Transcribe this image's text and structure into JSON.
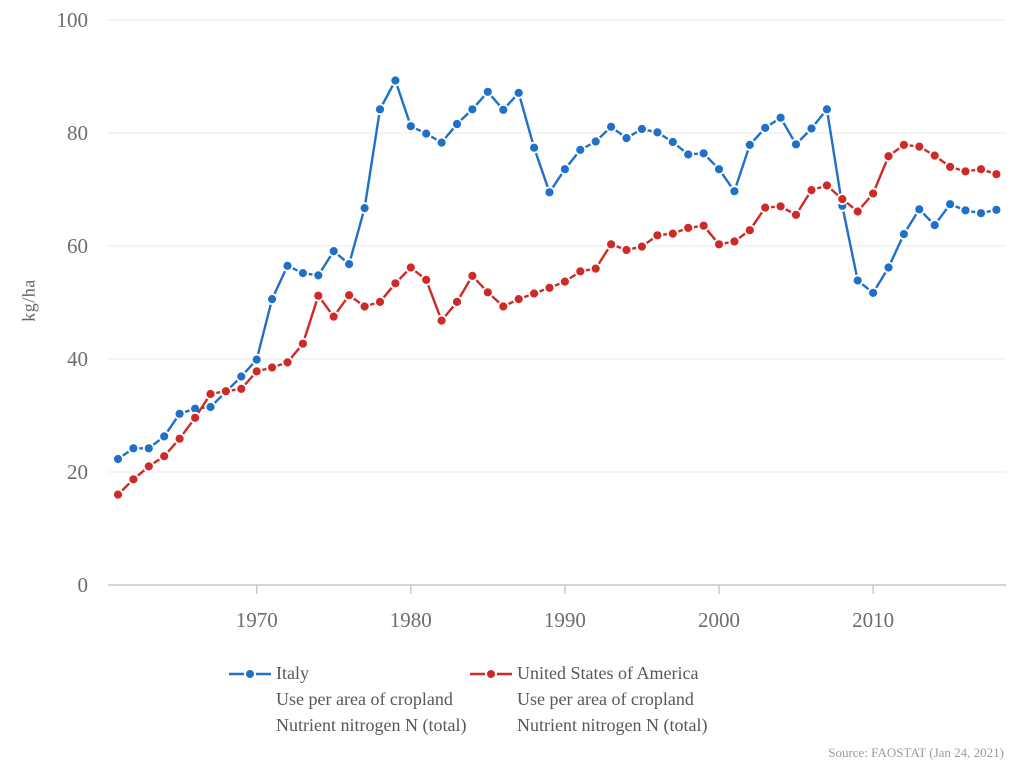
{
  "chart": {
    "y_axis": {
      "label": "kg/ha",
      "ticks": [
        0,
        20,
        40,
        60,
        80,
        100
      ],
      "max": 100
    },
    "x_axis": {
      "ticks": [
        1970,
        1980,
        1990,
        2000,
        2010
      ]
    },
    "source": "Source: FAOSTAT (Jan 24, 2021)"
  },
  "colors": {
    "italy": "#2070c8",
    "usa": "#cd2a28",
    "grid": "#e8e8e8",
    "axis": "#c9c9c9",
    "tick_text": "#6d6d6d"
  },
  "legend": {
    "items": [
      {
        "name": "Italy",
        "line1": "Use per area of cropland",
        "line2": "Nutrient nitrogen N (total)",
        "color": "#2070c8"
      },
      {
        "name": "United States of America",
        "line1": "Use per area of cropland",
        "line2": "Nutrient nitrogen N (total)",
        "color": "#cd2a28"
      }
    ]
  },
  "chart_data": {
    "type": "line",
    "title": "",
    "xlabel": "",
    "ylabel": "kg/ha",
    "ylim": [
      0,
      100
    ],
    "xlim": [
      1961,
      2018
    ],
    "grid": true,
    "legend_position": "bottom",
    "x": [
      1961,
      1962,
      1963,
      1964,
      1965,
      1966,
      1967,
      1968,
      1969,
      1970,
      1971,
      1972,
      1973,
      1974,
      1975,
      1976,
      1977,
      1978,
      1979,
      1980,
      1981,
      1982,
      1983,
      1984,
      1985,
      1986,
      1987,
      1988,
      1989,
      1990,
      1991,
      1992,
      1993,
      1994,
      1995,
      1996,
      1997,
      1998,
      1999,
      2000,
      2001,
      2002,
      2003,
      2004,
      2005,
      2006,
      2007,
      2008,
      2009,
      2010,
      2011,
      2012,
      2013,
      2014,
      2015,
      2016,
      2017,
      2018
    ],
    "series": [
      {
        "name": "Italy",
        "color": "#2070c8",
        "values": [
          22.3,
          24.2,
          24.2,
          26.3,
          30.3,
          31.2,
          31.5,
          34.2,
          36.9,
          39.9,
          50.6,
          56.5,
          55.2,
          54.8,
          59.1,
          56.8,
          66.7,
          84.2,
          89.3,
          81.2,
          79.9,
          78.3,
          81.6,
          84.2,
          87.3,
          84.1,
          87.1,
          77.4,
          69.5,
          73.6,
          77.0,
          78.5,
          81.1,
          79.1,
          80.7,
          80.1,
          78.4,
          76.2,
          76.4,
          73.6,
          69.7,
          77.9,
          80.9,
          82.7,
          78.0,
          80.8,
          84.2,
          67.1,
          53.9,
          51.7,
          56.2,
          62.1,
          66.5,
          63.7,
          67.4,
          66.3,
          65.8,
          66.4
        ]
      },
      {
        "name": "United States of America",
        "color": "#cd2a28",
        "values": [
          16.0,
          18.7,
          21.0,
          22.8,
          25.9,
          29.6,
          33.8,
          34.3,
          34.7,
          37.8,
          38.5,
          39.4,
          42.7,
          51.2,
          47.5,
          51.3,
          49.3,
          50.1,
          53.4,
          56.2,
          54.0,
          46.8,
          50.1,
          54.7,
          51.8,
          49.3,
          50.6,
          51.6,
          52.6,
          53.7,
          55.5,
          56.0,
          60.3,
          59.3,
          59.9,
          61.9,
          62.2,
          63.2,
          63.6,
          60.3,
          60.8,
          62.8,
          66.8,
          67.0,
          65.5,
          69.9,
          70.7,
          68.3,
          66.1,
          69.3,
          75.9,
          77.9,
          77.6,
          76.0,
          74.0,
          73.2,
          73.6,
          72.7
        ]
      }
    ]
  }
}
